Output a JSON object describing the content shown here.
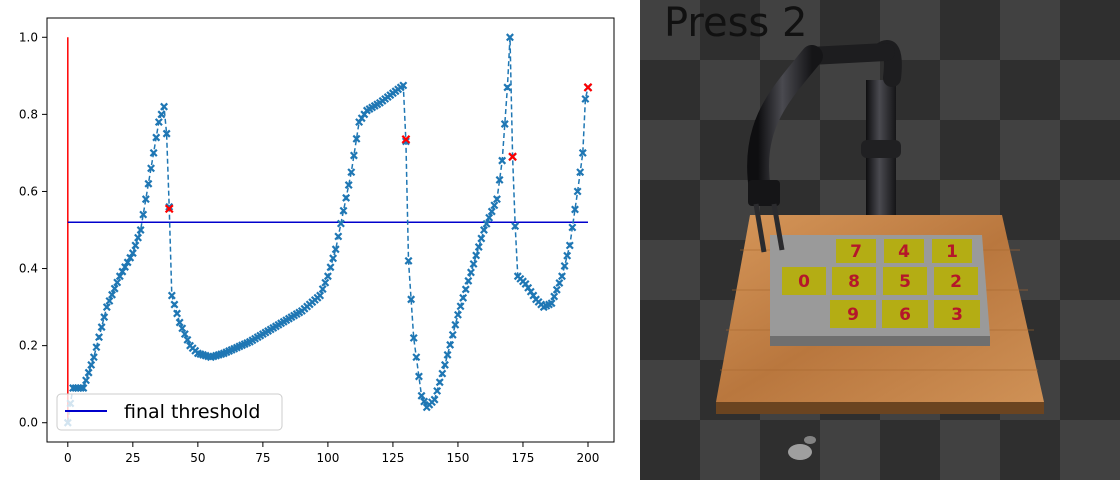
{
  "chart_data": {
    "type": "scatter",
    "title": "",
    "xlabel": "",
    "ylabel": "",
    "xlim": [
      -8,
      210
    ],
    "ylim": [
      -0.05,
      1.05
    ],
    "x_ticks": [
      0,
      25,
      50,
      75,
      100,
      125,
      150,
      175,
      200
    ],
    "y_ticks": [
      0.0,
      0.2,
      0.4,
      0.6,
      0.8,
      1.0
    ],
    "grid": false,
    "legend": {
      "position": "lower-left",
      "entries": [
        "final threshold"
      ]
    },
    "series": [
      {
        "style": "dashed-line-x-markers",
        "color": "#1f77b4",
        "keypoints": [
          [
            0,
            0.0
          ],
          [
            1,
            0.05
          ],
          [
            2,
            0.09
          ],
          [
            6,
            0.09
          ],
          [
            10,
            0.17
          ],
          [
            15,
            0.3
          ],
          [
            20,
            0.38
          ],
          [
            25,
            0.44
          ],
          [
            28,
            0.5
          ],
          [
            30,
            0.58
          ],
          [
            33,
            0.7
          ],
          [
            35,
            0.78
          ],
          [
            37,
            0.82
          ],
          [
            38,
            0.75
          ],
          [
            39,
            0.56
          ],
          [
            40,
            0.33
          ],
          [
            43,
            0.26
          ],
          [
            47,
            0.2
          ],
          [
            50,
            0.18
          ],
          [
            55,
            0.17
          ],
          [
            60,
            0.18
          ],
          [
            70,
            0.21
          ],
          [
            80,
            0.25
          ],
          [
            90,
            0.29
          ],
          [
            97,
            0.33
          ],
          [
            100,
            0.38
          ],
          [
            103,
            0.45
          ],
          [
            106,
            0.55
          ],
          [
            109,
            0.65
          ],
          [
            112,
            0.78
          ],
          [
            115,
            0.81
          ],
          [
            120,
            0.83
          ],
          [
            124,
            0.85
          ],
          [
            129,
            0.875
          ],
          [
            130,
            0.73
          ],
          [
            131,
            0.42
          ],
          [
            133,
            0.22
          ],
          [
            136,
            0.07
          ],
          [
            138,
            0.04
          ],
          [
            141,
            0.06
          ],
          [
            145,
            0.15
          ],
          [
            150,
            0.28
          ],
          [
            155,
            0.39
          ],
          [
            160,
            0.5
          ],
          [
            165,
            0.58
          ],
          [
            167,
            0.68
          ],
          [
            169,
            0.87
          ],
          [
            170,
            1.0
          ],
          [
            171,
            0.69
          ],
          [
            172,
            0.51
          ],
          [
            173,
            0.38
          ],
          [
            176,
            0.36
          ],
          [
            180,
            0.32
          ],
          [
            183,
            0.3
          ],
          [
            186,
            0.31
          ],
          [
            190,
            0.38
          ],
          [
            193,
            0.46
          ],
          [
            196,
            0.6
          ],
          [
            198,
            0.7
          ],
          [
            199,
            0.84
          ],
          [
            200,
            0.87
          ]
        ]
      },
      {
        "style": "x-markers",
        "color": "#ff0000",
        "points": [
          [
            39,
            0.555
          ],
          [
            130,
            0.735
          ],
          [
            171,
            0.69
          ],
          [
            200,
            0.87
          ]
        ]
      }
    ],
    "threshold_line": {
      "name": "final threshold",
      "value": 0.52,
      "x_range": [
        0,
        200
      ],
      "color": "#0000cc"
    },
    "vertical_line": {
      "x": 0,
      "y_range": [
        0,
        1.0
      ],
      "color": "#ff0000"
    }
  },
  "sim": {
    "task_text": "Press 2",
    "keypad": {
      "rows": [
        [
          "7",
          "4",
          "1"
        ],
        [
          "8",
          "5",
          "2"
        ],
        [
          "9",
          "6",
          "3"
        ]
      ],
      "zero": "0",
      "key_color": "#b4ad14",
      "digit_color": "#b5172a"
    },
    "colors": {
      "floor_dark": "#2f2f2f",
      "floor_light": "#4a4a4a",
      "table_wood": "#c8884a",
      "panel_grey": "#9a9a9a",
      "arm": "#1d1d1f"
    }
  }
}
